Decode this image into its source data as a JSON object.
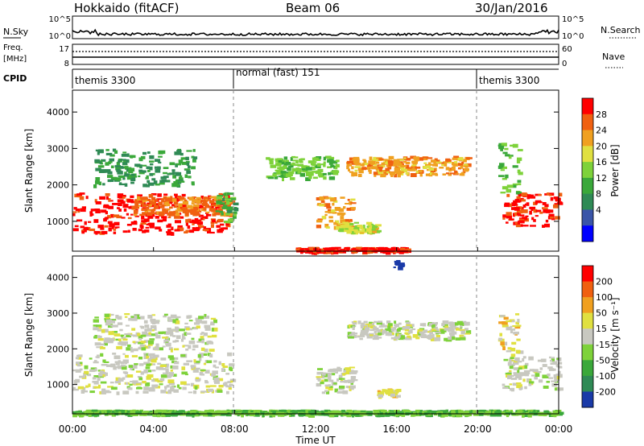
{
  "header": {
    "title_left": "Hokkaido (fitACF)",
    "title_center": "Beam 06",
    "title_right": "30/Jan/2016"
  },
  "noise_panel": {
    "label": "N.Sky",
    "left_ticks": [
      "10^5",
      "10^0"
    ],
    "right_ticks": [
      "10^5",
      "10^0"
    ],
    "right_label": "N.Search"
  },
  "freq_panel": {
    "label_top": "Freq.",
    "label_bottom": "[MHz]",
    "left_ticks": [
      "17",
      "8"
    ],
    "right_ticks": [
      "60",
      "0"
    ],
    "right_label": "Nave"
  },
  "cpid_panel": {
    "label": "CPID",
    "segments": [
      {
        "label": "themis 3300",
        "start_hour": 0,
        "end_hour": 8
      },
      {
        "label": "normal (fast) 151",
        "start_hour": 8,
        "end_hour": 20
      },
      {
        "label": "themis 3300",
        "start_hour": 20,
        "end_hour": 24
      }
    ]
  },
  "x_axis": {
    "label": "Time UT",
    "ticks": [
      "00:00",
      "04:00",
      "08:00",
      "12:00",
      "16:00",
      "20:00",
      "00:00"
    ]
  },
  "power_panel": {
    "ylabel": "Slant Range [km]",
    "cbar_label": "Power [dB]",
    "cbar_ticks": [
      "28",
      "24",
      "20",
      "16",
      "12",
      "8",
      "4"
    ],
    "cbar_colors": [
      "#0000ff",
      "#3a55a8",
      "#2f8a55",
      "#3aa83a",
      "#7ed23a",
      "#e0e040",
      "#f0a020",
      "#f06010",
      "#ff0000"
    ],
    "yticks": [
      "4000",
      "3000",
      "2000",
      "1000"
    ]
  },
  "velocity_panel": {
    "ylabel": "Slant Range [km]",
    "cbar_label": "Velocity [m s⁻¹]",
    "cbar_ticks": [
      "200",
      "100",
      "50",
      "15",
      "-15",
      "-50",
      "-100",
      "-200"
    ],
    "cbar_colors": [
      "#1a3aa8",
      "#2f8a55",
      "#3aa83a",
      "#7ed23a",
      "#c8c8c0",
      "#e0e040",
      "#f0a020",
      "#f06010",
      "#ff0000"
    ],
    "yticks": [
      "4000",
      "3000",
      "2000",
      "1000"
    ]
  },
  "chart_data": [
    {
      "type": "heatmap",
      "title": "Hokkaido (fitACF) Beam 06 30/Jan/2016 — Power",
      "xlabel": "Time UT",
      "ylabel": "Slant Range [km]",
      "colorbar_label": "Power [dB]",
      "xlim_hours": [
        0,
        24
      ],
      "ylim": [
        180,
        4600
      ],
      "clim": [
        0,
        30
      ],
      "regions": [
        {
          "t": [
            0.0,
            7.7
          ],
          "r": [
            700,
            1800
          ],
          "value": 28
        },
        {
          "t": [
            3.0,
            7.8
          ],
          "r": [
            1200,
            1700
          ],
          "value": 24
        },
        {
          "t": [
            7.0,
            8.0
          ],
          "r": [
            1000,
            1800
          ],
          "value": 12
        },
        {
          "t": [
            12.0,
            13.8
          ],
          "r": [
            800,
            1700
          ],
          "value": 22
        },
        {
          "t": [
            13.0,
            15.0
          ],
          "r": [
            700,
            1000
          ],
          "value": 18
        },
        {
          "t": [
            13.5,
            19.5
          ],
          "r": [
            2300,
            2800
          ],
          "value": 22
        },
        {
          "t": [
            11.0,
            16.5
          ],
          "r": [
            180,
            300
          ],
          "value": 28
        },
        {
          "t": [
            21.2,
            24.0
          ],
          "r": [
            900,
            1800
          ],
          "value": 28
        },
        {
          "t": [
            21.0,
            22.0
          ],
          "r": [
            1800,
            3200
          ],
          "value": 14
        },
        {
          "t": [
            1.0,
            6.0
          ],
          "r": [
            2000,
            3000
          ],
          "value": 10
        },
        {
          "t": [
            9.5,
            13.0
          ],
          "r": [
            2200,
            2800
          ],
          "value": 14
        }
      ]
    },
    {
      "type": "heatmap",
      "title": "Hokkaido (fitACF) Beam 06 30/Jan/2016 — Velocity",
      "xlabel": "Time UT",
      "ylabel": "Slant Range [km]",
      "colorbar_label": "Velocity [m s-1]",
      "xlim_hours": [
        0,
        24
      ],
      "ylim": [
        180,
        4600
      ],
      "clim": [
        -200,
        200
      ],
      "regions": [
        {
          "t": [
            0.0,
            7.8
          ],
          "r": [
            800,
            1900
          ],
          "value": 0
        },
        {
          "t": [
            1.0,
            7.0
          ],
          "r": [
            2000,
            3000
          ],
          "value": 0
        },
        {
          "t": [
            12.0,
            14.0
          ],
          "r": [
            800,
            1500
          ],
          "value": 0
        },
        {
          "t": [
            13.5,
            19.5
          ],
          "r": [
            2300,
            2800
          ],
          "value": 0
        },
        {
          "t": [
            21.2,
            24.0
          ],
          "r": [
            900,
            1800
          ],
          "value": 0
        },
        {
          "t": [
            21.0,
            22.0
          ],
          "r": [
            1800,
            3000
          ],
          "value": 40
        },
        {
          "t": [
            15.0,
            16.0
          ],
          "r": [
            700,
            900
          ],
          "value": 40
        },
        {
          "t": [
            15.8,
            16.2
          ],
          "r": [
            4300,
            4500
          ],
          "value": -200
        },
        {
          "t": [
            0.0,
            24.0
          ],
          "r": [
            180,
            300
          ],
          "value": -60
        }
      ]
    }
  ]
}
